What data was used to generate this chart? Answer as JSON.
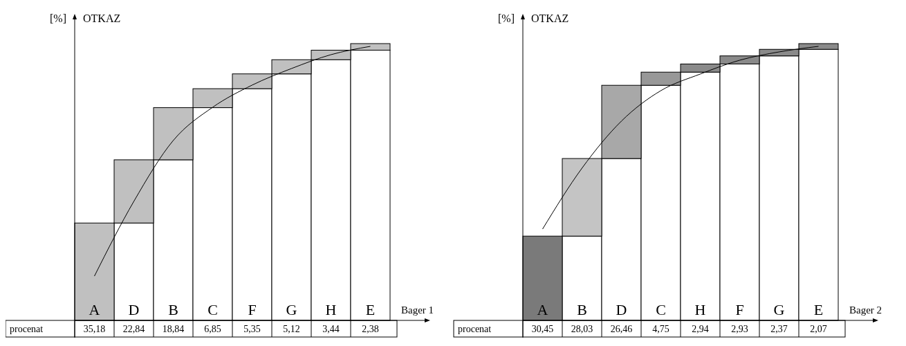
{
  "chart_data": [
    {
      "type": "bar",
      "stacked": true,
      "ylabel": "OTKAZ",
      "xlabel": "Bager 1",
      "annotations": [
        "[%]",
        "procenat"
      ],
      "categories": [
        "A",
        "D",
        "B",
        "C",
        "F",
        "G",
        "H",
        "E"
      ],
      "series": [
        {
          "color": "#ffffff",
          "values": [
            0,
            35.18,
            58.02,
            76.86,
            83.71,
            89.06,
            94.18,
            97.62
          ]
        },
        {
          "values": [
            35.18,
            22.84,
            18.84,
            6.85,
            5.35,
            5.12,
            3.44,
            2.38
          ],
          "colors": [
            "#c0c0c0",
            "#c0c0c0",
            "#c0c0c0",
            "#c0c0c0",
            "#c0c0c0",
            "#c0c0c0",
            "#c0c0c0",
            "#c0c0c0"
          ],
          "value_labels": [
            "35,18",
            "22,84",
            "18,84",
            "6,85",
            "5,35",
            "5,12",
            "3,44",
            "2,38"
          ]
        },
        {
          "type": "line",
          "color": "#000000",
          "values": [
            16,
            43,
            65,
            77,
            85,
            91,
            96,
            99
          ]
        }
      ],
      "marker": "none",
      "line_style": "solid",
      "grid": false
    },
    {
      "type": "bar",
      "stacked": true,
      "ylabel": "OTKAZ",
      "xlabel": "Bager 2",
      "annotations": [
        "[%]",
        "procenat"
      ],
      "categories": [
        "A",
        "B",
        "D",
        "C",
        "H",
        "F",
        "G",
        "E"
      ],
      "series": [
        {
          "color": "#ffffff",
          "values": [
            0,
            30.45,
            58.48,
            84.94,
            89.69,
            92.63,
            95.56,
            97.93
          ]
        },
        {
          "values": [
            30.45,
            28.03,
            26.46,
            4.75,
            2.94,
            2.93,
            2.37,
            2.07
          ],
          "colors": [
            "#7a7a7a",
            "#c4c4c4",
            "#a8a8a8",
            "#989898",
            "#8a8a8a",
            "#8a8a8a",
            "#8a8a8a",
            "#8a8a8a"
          ],
          "value_labels": [
            "30,45",
            "28,03",
            "26,46",
            "4,75",
            "2,94",
            "2,93",
            "2,37",
            "2,07"
          ]
        },
        {
          "type": "line",
          "color": "#000000",
          "values": [
            33,
            55,
            72,
            83,
            89,
            94,
            97,
            99
          ]
        }
      ],
      "marker": "none",
      "line_style": "solid",
      "grid": false
    }
  ]
}
